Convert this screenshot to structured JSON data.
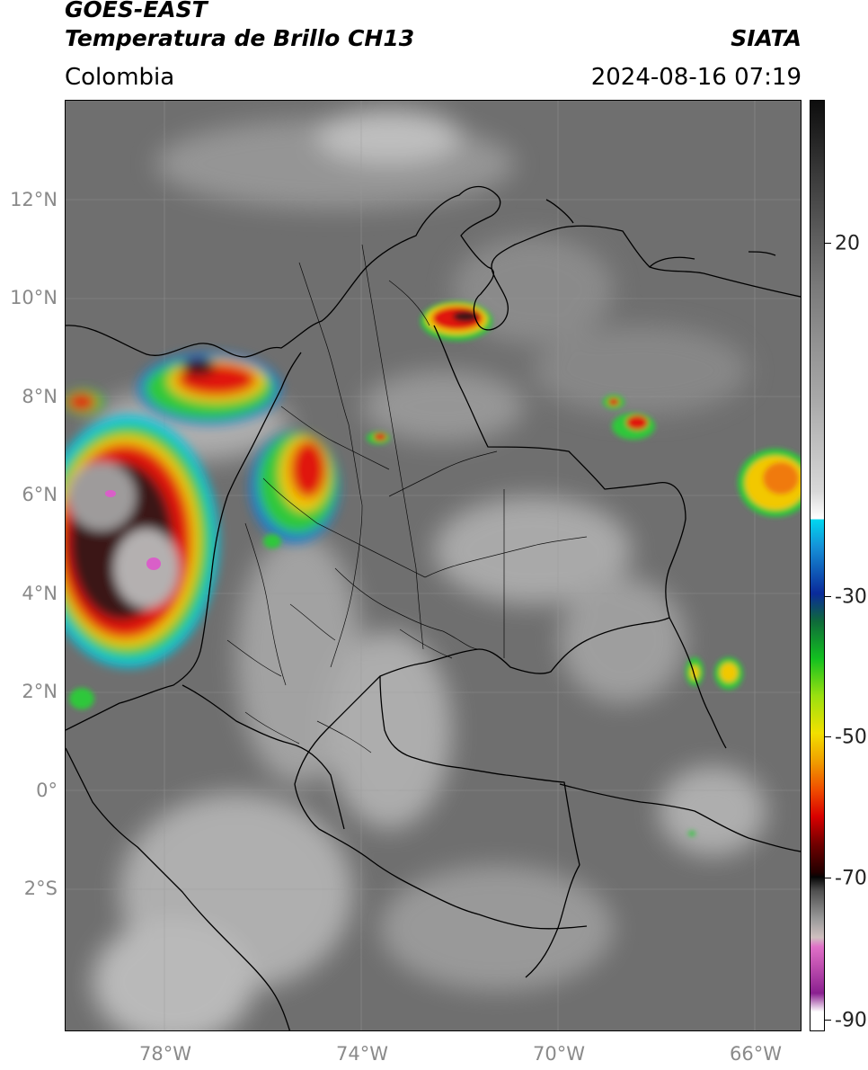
{
  "header": {
    "satellite": "GOES-EAST",
    "product": "Temperatura de Brillo CH13",
    "brand": "SIATA",
    "region": "Colombia",
    "datetime": "2024-08-16 07:19"
  },
  "map": {
    "lat_labels": [
      "12°N",
      "10°N",
      "8°N",
      "6°N",
      "4°N",
      "2°N",
      "0°",
      "2°S"
    ],
    "lon_labels": [
      "78°W",
      "74°W",
      "70°W",
      "66°W"
    ]
  },
  "colorbar": {
    "labels": [
      "20",
      "-30",
      "-50",
      "-70",
      "-90"
    ]
  },
  "colors": {
    "background_gray": "#6f6f6f",
    "coast_black": "#000000",
    "deep_convection_red": "#e0150e",
    "overshoot_magenta": "#d95fc8"
  }
}
